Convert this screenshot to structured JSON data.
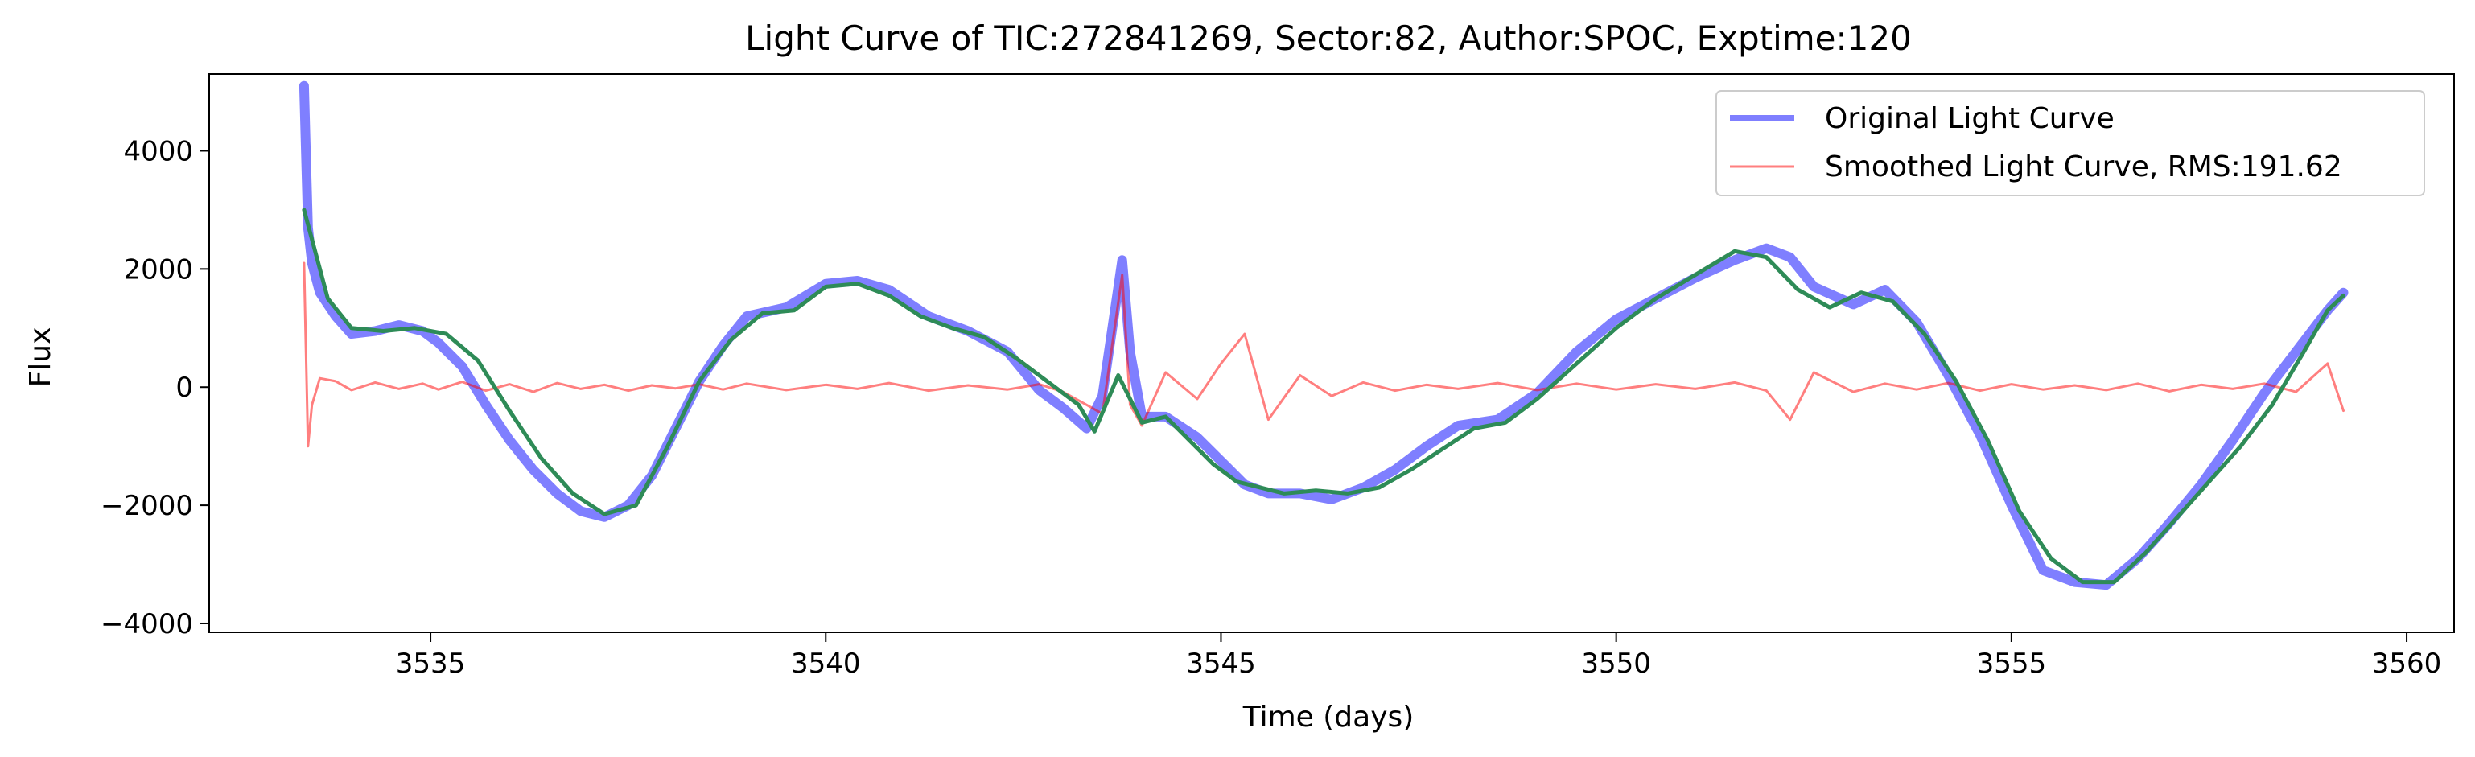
{
  "chart_data": {
    "type": "line",
    "title": "Light Curve of TIC:272841269, Sector:82, Author:SPOC, Exptime:120",
    "xlabel": "Time (days)",
    "ylabel": "Flux",
    "xlim": [
      3532.2,
      3560.6
    ],
    "ylim": [
      -4150,
      5300
    ],
    "xticks": [
      3535,
      3540,
      3545,
      3550,
      3555,
      3560
    ],
    "yticks": [
      -4000,
      -2000,
      0,
      2000,
      4000
    ],
    "xtick_labels": [
      "3535",
      "3540",
      "3545",
      "3550",
      "3555",
      "3560"
    ],
    "ytick_labels": [
      "−4000",
      "−2000",
      "0",
      "2000",
      "4000"
    ],
    "legend_position": "top-right",
    "grid": false,
    "series": [
      {
        "name": "Original Light Curve",
        "color": "#0000ff",
        "alpha": 0.5,
        "x": [
          3533.4,
          3533.45,
          3533.5,
          3533.6,
          3533.8,
          3534.0,
          3534.3,
          3534.6,
          3534.9,
          3535.1,
          3535.4,
          3535.7,
          3536.0,
          3536.3,
          3536.6,
          3536.9,
          3537.2,
          3537.5,
          3537.8,
          3538.1,
          3538.4,
          3538.7,
          3539.0,
          3539.5,
          3540.0,
          3540.4,
          3540.8,
          3541.3,
          3541.8,
          3542.3,
          3542.7,
          3543.0,
          3543.3,
          3543.5,
          3543.75,
          3543.85,
          3544.0,
          3544.3,
          3544.7,
          3545.0,
          3545.3,
          3545.6,
          3546.0,
          3546.4,
          3546.8,
          3547.2,
          3547.6,
          3548.0,
          3548.5,
          3549.0,
          3549.5,
          3550.0,
          3550.5,
          3551.0,
          3551.5,
          3551.9,
          3552.2,
          3552.5,
          3553.0,
          3553.4,
          3553.8,
          3554.2,
          3554.6,
          3555.0,
          3555.4,
          3555.8,
          3556.2,
          3556.6,
          3557.0,
          3557.4,
          3557.8,
          3558.2,
          3558.6,
          3559.0,
          3559.2
        ],
        "y": [
          5100,
          2700,
          2100,
          1600,
          1200,
          900,
          950,
          1050,
          950,
          750,
          350,
          -300,
          -900,
          -1400,
          -1800,
          -2100,
          -2200,
          -2000,
          -1500,
          -700,
          100,
          700,
          1200,
          1350,
          1750,
          1800,
          1650,
          1200,
          950,
          600,
          -50,
          -350,
          -700,
          -150,
          2150,
          600,
          -500,
          -500,
          -850,
          -1250,
          -1650,
          -1800,
          -1800,
          -1900,
          -1700,
          -1400,
          -1000,
          -650,
          -550,
          -100,
          600,
          1150,
          1500,
          1850,
          2150,
          2350,
          2200,
          1700,
          1400,
          1650,
          1100,
          200,
          -800,
          -2000,
          -3100,
          -3300,
          -3350,
          -2900,
          -2300,
          -1650,
          -900,
          -100,
          600,
          1300,
          1600
        ]
      },
      {
        "name": "Smoothed Light Curve, RMS:191.62",
        "color": "#ff0000",
        "alpha": 0.5,
        "x": [
          3533.4,
          3533.45,
          3533.5,
          3533.6,
          3533.8,
          3534.0,
          3534.3,
          3534.6,
          3534.9,
          3535.1,
          3535.4,
          3535.7,
          3536.0,
          3536.3,
          3536.6,
          3536.9,
          3537.2,
          3537.5,
          3537.8,
          3538.1,
          3538.4,
          3538.7,
          3539.0,
          3539.5,
          3540.0,
          3540.4,
          3540.8,
          3541.3,
          3541.8,
          3542.3,
          3542.7,
          3543.0,
          3543.3,
          3543.5,
          3543.75,
          3543.85,
          3544.0,
          3544.3,
          3544.7,
          3545.0,
          3545.3,
          3545.6,
          3546.0,
          3546.4,
          3546.8,
          3547.2,
          3547.6,
          3548.0,
          3548.5,
          3549.0,
          3549.5,
          3550.0,
          3550.5,
          3551.0,
          3551.5,
          3551.9,
          3552.2,
          3552.5,
          3553.0,
          3553.4,
          3553.8,
          3554.2,
          3554.6,
          3555.0,
          3555.4,
          3555.8,
          3556.2,
          3556.6,
          3557.0,
          3557.4,
          3557.8,
          3558.2,
          3558.6,
          3559.0,
          3559.2
        ],
        "y": [
          2100,
          -1000,
          -300,
          150,
          100,
          -50,
          80,
          -30,
          60,
          -40,
          90,
          -60,
          50,
          -80,
          70,
          -30,
          40,
          -60,
          30,
          -20,
          50,
          -40,
          60,
          -50,
          40,
          -30,
          70,
          -60,
          30,
          -40,
          50,
          -80,
          -300,
          -450,
          1900,
          -300,
          -650,
          250,
          -200,
          400,
          900,
          -550,
          200,
          -150,
          80,
          -60,
          40,
          -30,
          70,
          -50,
          60,
          -40,
          50,
          -30,
          80,
          -60,
          -550,
          250,
          -80,
          60,
          -40,
          70,
          -60,
          50,
          -40,
          30,
          -50,
          60,
          -70,
          40,
          -30,
          60,
          -80,
          400,
          -400
        ]
      },
      {
        "name": "",
        "color": "#2e8b57",
        "alpha": 1,
        "x": [
          3533.4,
          3533.7,
          3534.0,
          3534.4,
          3534.8,
          3535.2,
          3535.6,
          3536.0,
          3536.4,
          3536.8,
          3537.2,
          3537.6,
          3538.0,
          3538.4,
          3538.8,
          3539.2,
          3539.6,
          3540.0,
          3540.4,
          3540.8,
          3541.2,
          3541.6,
          3542.0,
          3542.4,
          3542.8,
          3543.2,
          3543.4,
          3543.7,
          3544.0,
          3544.3,
          3544.6,
          3544.9,
          3545.2,
          3545.5,
          3545.8,
          3546.2,
          3546.6,
          3547.0,
          3547.4,
          3547.8,
          3548.2,
          3548.6,
          3549.0,
          3549.5,
          3550.0,
          3550.5,
          3551.0,
          3551.5,
          3551.9,
          3552.3,
          3552.7,
          3553.1,
          3553.5,
          3553.9,
          3554.3,
          3554.7,
          3555.1,
          3555.5,
          3555.9,
          3556.3,
          3556.7,
          3557.1,
          3557.5,
          3557.9,
          3558.3,
          3558.7,
          3559.0,
          3559.2
        ],
        "y": [
          3000,
          1500,
          1000,
          950,
          1000,
          900,
          450,
          -400,
          -1200,
          -1800,
          -2150,
          -2000,
          -1000,
          100,
          800,
          1250,
          1300,
          1700,
          1750,
          1550,
          1200,
          1000,
          850,
          500,
          100,
          -300,
          -750,
          200,
          -600,
          -500,
          -900,
          -1300,
          -1600,
          -1700,
          -1800,
          -1750,
          -1800,
          -1700,
          -1400,
          -1050,
          -700,
          -600,
          -200,
          400,
          1000,
          1500,
          1900,
          2300,
          2200,
          1650,
          1350,
          1600,
          1450,
          900,
          100,
          -900,
          -2100,
          -2900,
          -3300,
          -3300,
          -2800,
          -2200,
          -1600,
          -1000,
          -300,
          600,
          1300,
          1550
        ]
      }
    ]
  }
}
